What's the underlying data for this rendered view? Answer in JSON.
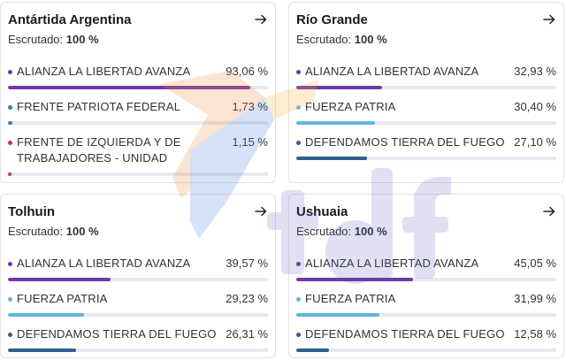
{
  "arrow_icon": "arrow-right-icon",
  "colors": {
    "lla": "#6f3aa8",
    "fp_fed": "#2f7fb4",
    "fit": "#d2323a",
    "fuerza_patria": "#66b3dc",
    "defendamos": "#2f5f8a"
  },
  "cards": [
    {
      "title": "Antártida Argentina",
      "scrutiny_label": "Escrutado:",
      "scrutiny_value": "100 %",
      "parties": [
        {
          "name": "ALIANZA LA LIBERTAD AVANZA",
          "pct": "93,06 %",
          "value": 93.06,
          "color": "lla"
        },
        {
          "name": "FRENTE PATRIOTA FEDERAL",
          "pct": "1,73 %",
          "value": 1.73,
          "color": "fp_fed"
        },
        {
          "name": "FRENTE DE IZQUIERDA Y DE TRABAJADORES - UNIDAD",
          "pct": "1,15 %",
          "value": 1.15,
          "color": "fit"
        }
      ]
    },
    {
      "title": "Río Grande",
      "scrutiny_label": "Escrutado:",
      "scrutiny_value": "100 %",
      "parties": [
        {
          "name": "ALIANZA LA LIBERTAD AVANZA",
          "pct": "32,93 %",
          "value": 32.93,
          "color": "lla"
        },
        {
          "name": "FUERZA PATRIA",
          "pct": "30,40 %",
          "value": 30.4,
          "color": "fuerza_patria"
        },
        {
          "name": "DEFENDAMOS TIERRA DEL FUEGO",
          "pct": "27,10 %",
          "value": 27.1,
          "color": "defendamos"
        }
      ]
    },
    {
      "title": "Tolhuin",
      "scrutiny_label": "Escrutado:",
      "scrutiny_value": "100 %",
      "parties": [
        {
          "name": "ALIANZA LA LIBERTAD AVANZA",
          "pct": "39,57 %",
          "value": 39.57,
          "color": "lla"
        },
        {
          "name": "FUERZA PATRIA",
          "pct": "29,23 %",
          "value": 29.23,
          "color": "fuerza_patria"
        },
        {
          "name": "DEFENDAMOS TIERRA DEL FUEGO",
          "pct": "26,31 %",
          "value": 26.31,
          "color": "defendamos"
        }
      ]
    },
    {
      "title": "Ushuaia",
      "scrutiny_label": "Escrutado:",
      "scrutiny_value": "100 %",
      "parties": [
        {
          "name": "ALIANZA LA LIBERTAD AVANZA",
          "pct": "45,05 %",
          "value": 45.05,
          "color": "lla"
        },
        {
          "name": "FUERZA PATRIA",
          "pct": "31,99 %",
          "value": 31.99,
          "color": "fuerza_patria"
        },
        {
          "name": "DEFENDAMOS TIERRA DEL FUEGO",
          "pct": "12,58 %",
          "value": 12.58,
          "color": "defendamos"
        }
      ]
    }
  ],
  "watermark_logo": "tdf"
}
